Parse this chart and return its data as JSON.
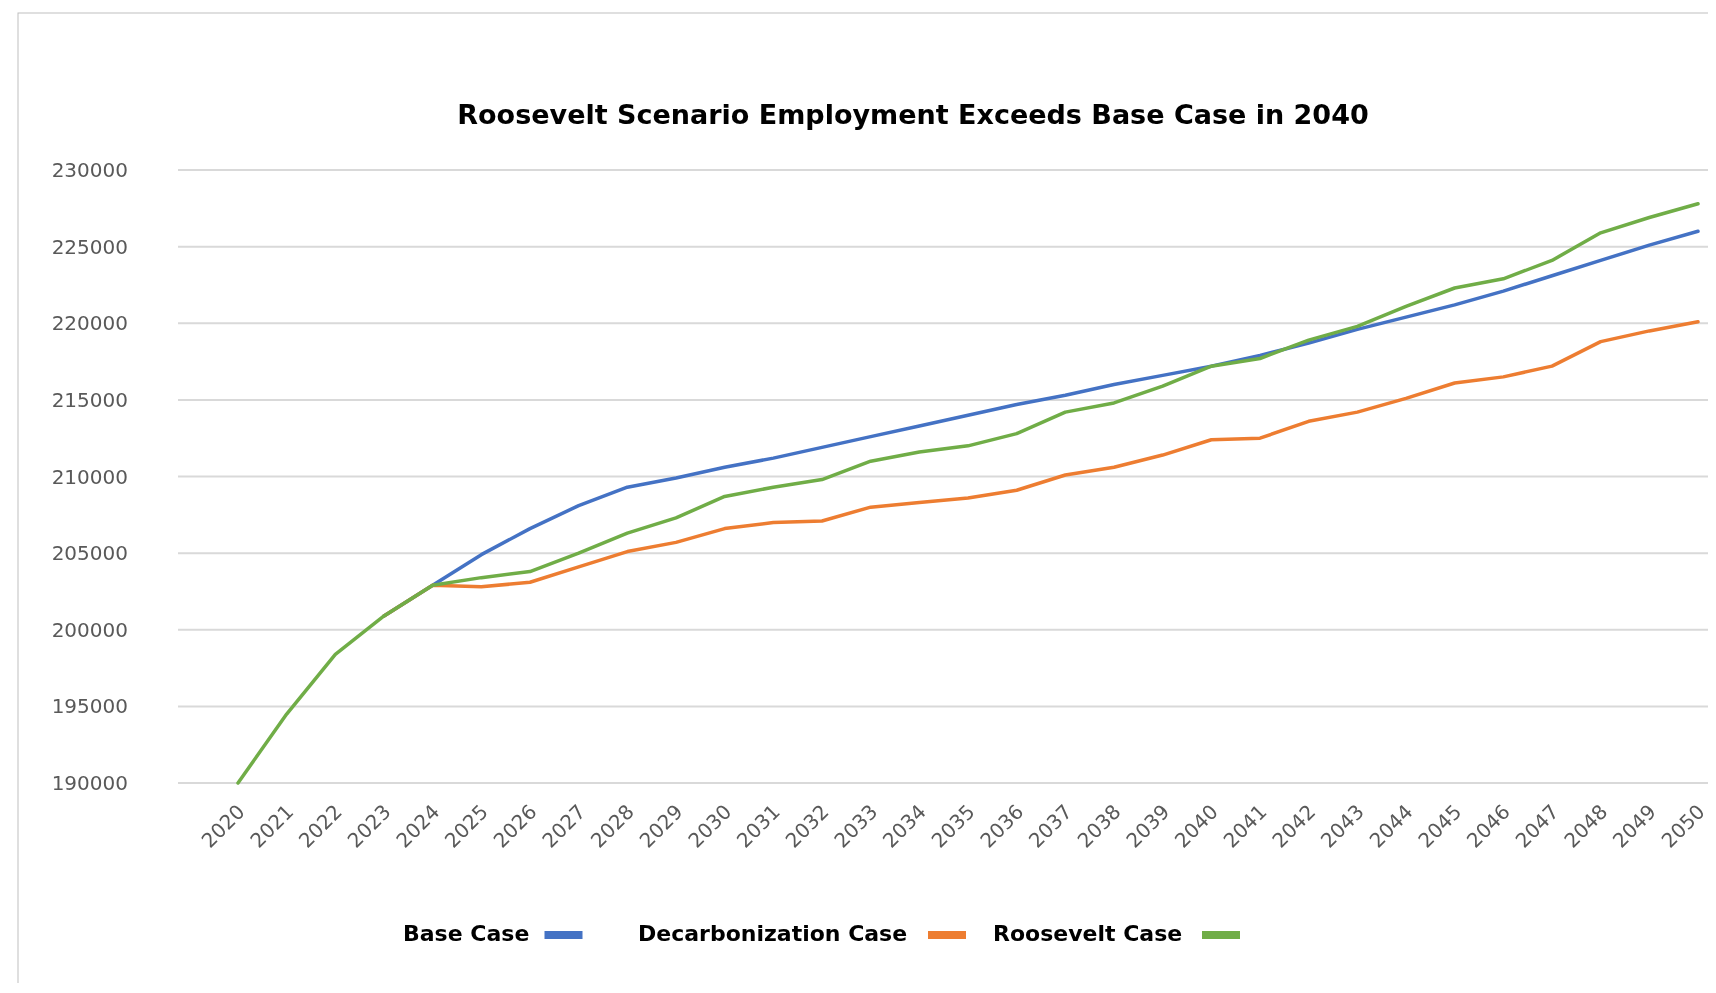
{
  "chart_data": {
    "type": "line",
    "title": "Roosevelt Scenario Employment Exceeds Base Case in 2040",
    "categories": [
      "2020",
      "2021",
      "2022",
      "2023",
      "2024",
      "2025",
      "2026",
      "2027",
      "2028",
      "2029",
      "2030",
      "2031",
      "2032",
      "2033",
      "2034",
      "2035",
      "2036",
      "2037",
      "2038",
      "2039",
      "2040",
      "2041",
      "2042",
      "2043",
      "2044",
      "2045",
      "2046",
      "2047",
      "2048",
      "2049",
      "2050"
    ],
    "series": [
      {
        "name": "Base Case",
        "color": "#4472c4",
        "values": [
          null,
          null,
          null,
          200900,
          202900,
          204900,
          206600,
          208100,
          209300,
          209900,
          210600,
          211200,
          211900,
          212600,
          213300,
          214000,
          214700,
          215300,
          216000,
          216600,
          217200,
          217900,
          218700,
          219600,
          220400,
          221200,
          222100,
          223100,
          224100,
          225100,
          226000
        ]
      },
      {
        "name": "Decarbonization Case",
        "color": "#ed7d31",
        "values": [
          null,
          null,
          null,
          200900,
          202900,
          202800,
          203100,
          204100,
          205100,
          205700,
          206600,
          207000,
          207100,
          208000,
          208300,
          208600,
          209100,
          210100,
          210600,
          211400,
          212400,
          212500,
          213600,
          214200,
          215100,
          216100,
          216500,
          217200,
          218800,
          219500,
          220100
        ]
      },
      {
        "name": "Roosevelt Case",
        "color": "#70ad47",
        "values": [
          190000,
          194500,
          198400,
          200900,
          202900,
          203400,
          203800,
          205000,
          206300,
          207300,
          208700,
          209300,
          209800,
          211000,
          211600,
          212000,
          212800,
          214200,
          214800,
          215900,
          217200,
          217700,
          218900,
          219800,
          221100,
          222300,
          222900,
          224100,
          225900,
          226900,
          227800
        ]
      }
    ],
    "ylim": [
      190000,
      230000
    ],
    "yticks": [
      190000,
      195000,
      200000,
      205000,
      210000,
      215000,
      220000,
      225000,
      230000
    ],
    "grid": "y",
    "legend": "bottom"
  }
}
